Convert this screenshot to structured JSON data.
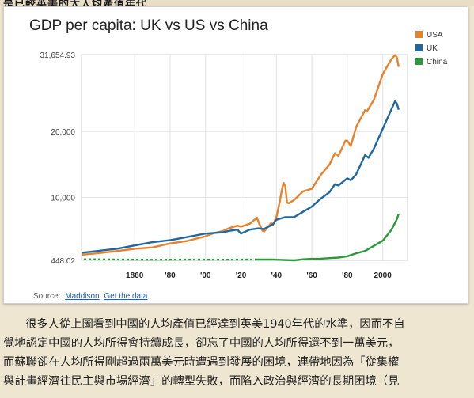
{
  "chart_data": {
    "type": "line",
    "title": "GDP per capita: UK vs US vs China",
    "xlabel": "",
    "ylabel": "",
    "xlim": [
      1830,
      2014
    ],
    "ylim": [
      448.02,
      31654.93
    ],
    "x_ticks": [
      1860,
      1880,
      1900,
      1920,
      1940,
      1960,
      1980,
      2000
    ],
    "x_tick_labels": [
      "1860",
      "'80",
      "'00",
      "'20",
      "'40",
      "'60",
      "'80",
      "2000"
    ],
    "y_ticks": [
      448.02,
      10000,
      20000,
      31654.93
    ],
    "y_tick_labels": [
      "448.02",
      "10,000",
      "20,000",
      "31,654.93"
    ],
    "grid": true,
    "legend": "top-right",
    "series": [
      {
        "name": "USA",
        "color": "#e8812b",
        "x": [
          1830,
          1840,
          1850,
          1860,
          1870,
          1880,
          1890,
          1900,
          1905,
          1910,
          1913,
          1918,
          1920,
          1925,
          1929,
          1930,
          1932,
          1933,
          1937,
          1938,
          1940,
          1942,
          1943,
          1944,
          1945,
          1946,
          1947,
          1950,
          1955,
          1960,
          1965,
          1970,
          1973,
          1975,
          1979,
          1980,
          1982,
          1985,
          1990,
          1991,
          1995,
          2000,
          2005,
          2007,
          2008,
          2009
        ],
        "values": [
          1300,
          1550,
          1850,
          2200,
          2400,
          3000,
          3400,
          4100,
          4600,
          4900,
          5300,
          5700,
          5550,
          6000,
          6900,
          6200,
          5000,
          4800,
          6100,
          5800,
          7000,
          9500,
          11000,
          12200,
          11700,
          9200,
          9100,
          9600,
          10900,
          11300,
          13400,
          15000,
          16700,
          16300,
          18600,
          18600,
          17800,
          20700,
          23200,
          23000,
          24800,
          28700,
          31000,
          31600,
          31200,
          29800
        ]
      },
      {
        "name": "UK",
        "color": "#1f67a1",
        "x": [
          1830,
          1840,
          1850,
          1860,
          1870,
          1880,
          1890,
          1900,
          1910,
          1913,
          1918,
          1920,
          1925,
          1930,
          1933,
          1938,
          1940,
          1945,
          1950,
          1955,
          1960,
          1965,
          1970,
          1973,
          1975,
          1980,
          1982,
          1985,
          1990,
          1992,
          1995,
          2000,
          2005,
          2007,
          2008,
          2009
        ],
        "values": [
          1600,
          1900,
          2200,
          2700,
          3200,
          3500,
          4000,
          4500,
          4700,
          4900,
          5100,
          4500,
          5100,
          5300,
          5200,
          5900,
          6600,
          7000,
          7000,
          7800,
          8600,
          9800,
          10800,
          12000,
          11800,
          12900,
          12600,
          13500,
          16400,
          16000,
          17400,
          20400,
          23400,
          24600,
          24200,
          23300
        ]
      },
      {
        "name": "China",
        "color": "#2b9a3b",
        "x": [
          1830,
          1870,
          1890,
          1913,
          1929,
          1938,
          1940,
          1950,
          1955,
          1960,
          1965,
          1970,
          1975,
          1980,
          1985,
          1990,
          1995,
          2000,
          2005,
          2008,
          2009
        ],
        "values": [
          600,
          530,
          560,
          550,
          570,
          580,
          550,
          450,
          600,
          680,
          700,
          780,
          870,
          1060,
          1520,
          1870,
          2650,
          3420,
          5100,
          6700,
          7500
        ]
      }
    ]
  },
  "source": {
    "prefix": "Source:",
    "link1": "Maddison",
    "link2": "Get the data"
  },
  "article": {
    "lines": [
      "很多人從上圖看到中國的人均產值已經達到英美1940年代的水準，因而不自",
      "覺地認定中國的人均所得會持續成長，卻忘了中國的人均所得還不到一萬美元，",
      "而蘇聯卻在人均所得剛超過兩萬美元時遭遇到發展的困境，連帶地因為「從集權",
      "與計畫經濟往民主與市場經濟」的轉型失敗，而陷入政治與經濟的長期困境（見"
    ]
  },
  "top_strip_text": "是已較英美的大人均產值年代"
}
